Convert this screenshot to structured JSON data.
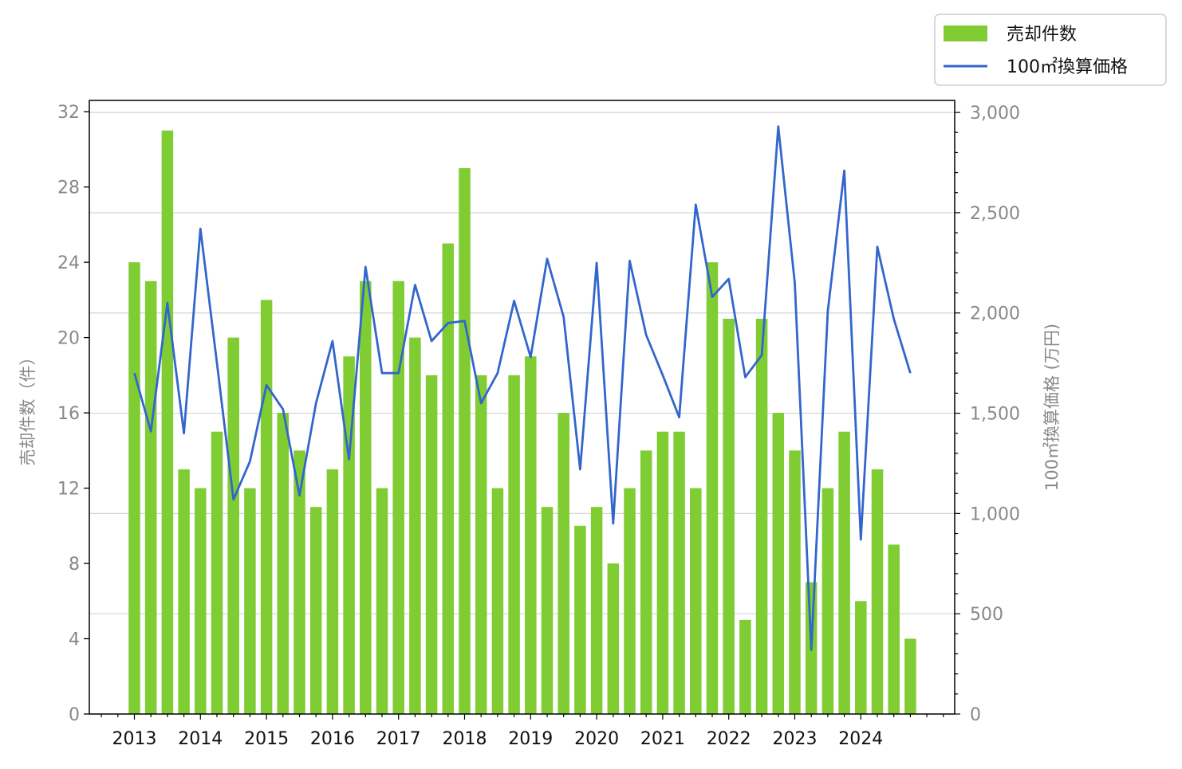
{
  "chart_data": {
    "type": "bar+line",
    "x_tick_labels": [
      "2013",
      "2014",
      "2015",
      "2016",
      "2017",
      "2018",
      "2019",
      "2020",
      "2021",
      "2022",
      "2023",
      "2024"
    ],
    "periods": [
      "2013-Q1",
      "2013-Q2",
      "2013-Q3",
      "2013-Q4",
      "2014-Q1",
      "2014-Q2",
      "2014-Q3",
      "2014-Q4",
      "2015-Q1",
      "2015-Q2",
      "2015-Q3",
      "2015-Q4",
      "2016-Q1",
      "2016-Q2",
      "2016-Q3",
      "2016-Q4",
      "2017-Q1",
      "2017-Q2",
      "2017-Q3",
      "2017-Q4",
      "2018-Q1",
      "2018-Q2",
      "2018-Q3",
      "2018-Q4",
      "2019-Q1",
      "2019-Q2",
      "2019-Q3",
      "2019-Q4",
      "2020-Q1",
      "2020-Q2",
      "2020-Q3",
      "2020-Q4",
      "2021-Q1",
      "2021-Q2",
      "2021-Q3",
      "2021-Q4",
      "2022-Q1",
      "2022-Q2",
      "2022-Q3",
      "2022-Q4",
      "2023-Q1",
      "2023-Q2",
      "2023-Q3",
      "2023-Q4",
      "2024-Q1",
      "2024-Q2",
      "2024-Q3",
      "2024-Q4"
    ],
    "series": [
      {
        "name": "売却件数",
        "type": "bar",
        "axis": "left",
        "color": "#7fcc33",
        "values": [
          24,
          23,
          31,
          13,
          12,
          15,
          20,
          12,
          22,
          16,
          14,
          11,
          13,
          19,
          23,
          12,
          23,
          20,
          18,
          25,
          29,
          18,
          12,
          18,
          19,
          11,
          16,
          10,
          11,
          8,
          12,
          14,
          15,
          15,
          12,
          24,
          21,
          5,
          21,
          16,
          14,
          7,
          12,
          15,
          6,
          13,
          9,
          4
        ]
      },
      {
        "name": "100㎡換算価格",
        "type": "line",
        "axis": "right",
        "color": "#3366cc",
        "values": [
          1700,
          1410,
          2050,
          1400,
          2420,
          1750,
          1070,
          1260,
          1640,
          1520,
          1090,
          1550,
          1860,
          1270,
          2230,
          1700,
          1700,
          2140,
          1860,
          1950,
          1960,
          1550,
          1700,
          2060,
          1780,
          2270,
          1980,
          1220,
          2250,
          950,
          2260,
          1890,
          1690,
          1480,
          2540,
          2080,
          2170,
          1680,
          1790,
          2930,
          2150,
          320,
          2010,
          2710,
          870,
          2330,
          1970,
          1700
        ]
      }
    ],
    "y_left": {
      "label": "売却件数（件）",
      "ylim": [
        0,
        32.6
      ],
      "ticks": [
        0,
        4,
        8,
        12,
        16,
        20,
        24,
        28,
        32
      ],
      "tick_labels": [
        "0",
        "4",
        "8",
        "12",
        "16",
        "20",
        "24",
        "28",
        "32"
      ]
    },
    "y_right": {
      "label": "100㎡換算価格 (万円)",
      "ylim": [
        0,
        3060
      ],
      "ticks": [
        0,
        500,
        1000,
        1500,
        2000,
        2500,
        3000
      ],
      "tick_labels": [
        "0",
        "500",
        "1,000",
        "1,500",
        "2,000",
        "2,500",
        "3,000"
      ]
    },
    "grid": "horizontal (right axis)",
    "legend": {
      "position": "top-right, outside plot",
      "entries": [
        "売却件数",
        "100㎡換算価格"
      ]
    }
  }
}
